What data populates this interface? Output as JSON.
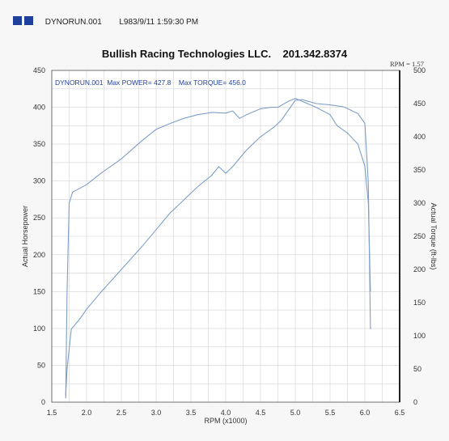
{
  "header": {
    "run_file": "DYNORUN.001",
    "run_info": "L983/9/11 1:59:30 PM"
  },
  "chart_data": {
    "type": "line",
    "title": "Bullish Racing Technologies LLC.    201.342.8374",
    "rpm_ratio_label": "RPM = 1.57",
    "annotation": "DYNORUN.001  Max POWER= 427.8    Max TORQUE= 456.0",
    "xlabel": "RPM (x1000)",
    "ylabel_left": "Actual Horsepower",
    "ylabel_right": "Actual Torque (ft-lbs)",
    "xlim": [
      1.5,
      6.5
    ],
    "ylim_left": [
      0,
      450
    ],
    "ylim_right": [
      0,
      500
    ],
    "x_ticks": [
      "1.5",
      "2.0",
      "2.5",
      "3.0",
      "3.5",
      "4.0",
      "4.5",
      "5.0",
      "5.5",
      "6.0",
      "6.5"
    ],
    "y_ticks_left": [
      "0",
      "50",
      "100",
      "150",
      "200",
      "250",
      "300",
      "350",
      "400",
      "450"
    ],
    "y_ticks_right": [
      "0",
      "50",
      "100",
      "150",
      "200",
      "250",
      "300",
      "350",
      "400",
      "450",
      "500"
    ],
    "grid": true,
    "line_color": "#7f9fc8",
    "series": [
      {
        "axis": "left",
        "points": [
          [
            1.7,
            5
          ],
          [
            1.72,
            150
          ],
          [
            1.75,
            270
          ],
          [
            1.8,
            285
          ],
          [
            1.9,
            290
          ],
          [
            2.0,
            295
          ],
          [
            2.2,
            310
          ],
          [
            2.5,
            330
          ],
          [
            2.8,
            355
          ],
          [
            3.0,
            370
          ],
          [
            3.2,
            378
          ],
          [
            3.4,
            385
          ],
          [
            3.6,
            390
          ],
          [
            3.8,
            393
          ],
          [
            4.0,
            392
          ],
          [
            4.1,
            395
          ],
          [
            4.2,
            385
          ],
          [
            4.3,
            390
          ],
          [
            4.5,
            398
          ],
          [
            4.65,
            400
          ],
          [
            4.75,
            400
          ],
          [
            4.9,
            408
          ],
          [
            5.0,
            412
          ],
          [
            5.1,
            408
          ],
          [
            5.3,
            400
          ],
          [
            5.5,
            390
          ],
          [
            5.6,
            375
          ],
          [
            5.75,
            365
          ],
          [
            5.9,
            350
          ],
          [
            6.0,
            320
          ],
          [
            6.05,
            270
          ],
          [
            6.08,
            150
          ]
        ]
      },
      {
        "axis": "right",
        "points": [
          [
            1.7,
            10
          ],
          [
            1.72,
            50
          ],
          [
            1.78,
            110
          ],
          [
            1.9,
            125
          ],
          [
            2.0,
            140
          ],
          [
            2.2,
            165
          ],
          [
            2.5,
            200
          ],
          [
            2.8,
            235
          ],
          [
            3.0,
            260
          ],
          [
            3.2,
            285
          ],
          [
            3.4,
            305
          ],
          [
            3.6,
            325
          ],
          [
            3.8,
            342
          ],
          [
            3.9,
            355
          ],
          [
            4.0,
            345
          ],
          [
            4.1,
            355
          ],
          [
            4.3,
            380
          ],
          [
            4.5,
            400
          ],
          [
            4.7,
            415
          ],
          [
            4.8,
            425
          ],
          [
            4.9,
            440
          ],
          [
            5.0,
            455
          ],
          [
            5.1,
            456
          ],
          [
            5.3,
            450
          ],
          [
            5.5,
            448
          ],
          [
            5.7,
            445
          ],
          [
            5.8,
            440
          ],
          [
            5.9,
            435
          ],
          [
            6.0,
            420
          ],
          [
            6.05,
            330
          ],
          [
            6.08,
            110
          ]
        ]
      }
    ]
  }
}
